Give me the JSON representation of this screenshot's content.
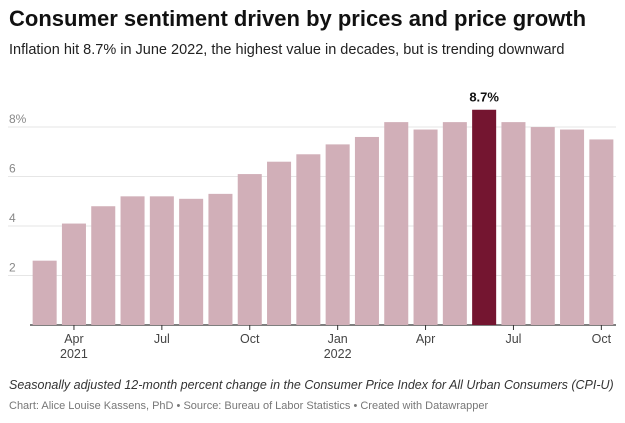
{
  "colors": {
    "bar": "#d1afb8",
    "highlight": "#741530",
    "gridline": "#e6e6e6",
    "baseline": "#333333",
    "tick_label": "#888888"
  },
  "title": "Consumer sentiment driven by prices and price growth",
  "subtitle": "Inflation hit 8.7% in June 2022, the highest value in decades, but is trending downward",
  "note": "Seasonally adjusted 12-month percent change in the Consumer Price Index for All Urban Consumers (CPI-U)",
  "credit": {
    "chart_by": "Chart: Alice Louise Kassens, PhD",
    "sep1": " • ",
    "source": "Source: Bureau of Labor Statistics",
    "sep2": " • ",
    "made_with": "Created with Datawrapper"
  },
  "chart_data": {
    "type": "bar",
    "x": [
      "2021-03",
      "2021-04",
      "2021-05",
      "2021-06",
      "2021-07",
      "2021-08",
      "2021-09",
      "2021-10",
      "2021-11",
      "2021-12",
      "2022-01",
      "2022-02",
      "2022-03",
      "2022-04",
      "2022-05",
      "2022-06",
      "2022-07",
      "2022-08",
      "2022-09",
      "2022-10"
    ],
    "values": [
      2.6,
      4.1,
      4.8,
      5.2,
      5.2,
      5.1,
      5.3,
      6.1,
      6.6,
      6.9,
      7.3,
      7.6,
      8.2,
      7.9,
      8.2,
      8.7,
      8.2,
      8.0,
      7.9,
      7.5
    ],
    "ylim": [
      0,
      9.7
    ],
    "y_ticks": [
      {
        "value": 2,
        "label": "2"
      },
      {
        "value": 4,
        "label": "4"
      },
      {
        "value": 6,
        "label": "6"
      },
      {
        "value": 8,
        "label": "8%"
      }
    ],
    "x_ticks": [
      {
        "index": 1,
        "label": "Apr",
        "year": "2021"
      },
      {
        "index": 4,
        "label": "Jul",
        "year": ""
      },
      {
        "index": 7,
        "label": "Oct",
        "year": ""
      },
      {
        "index": 10,
        "label": "Jan",
        "year": "2022"
      },
      {
        "index": 13,
        "label": "Apr",
        "year": ""
      },
      {
        "index": 16,
        "label": "Jul",
        "year": ""
      },
      {
        "index": 19,
        "label": "Oct",
        "year": ""
      }
    ],
    "highlight_index": 15,
    "highlight_label": "8.7%",
    "grid": true
  }
}
